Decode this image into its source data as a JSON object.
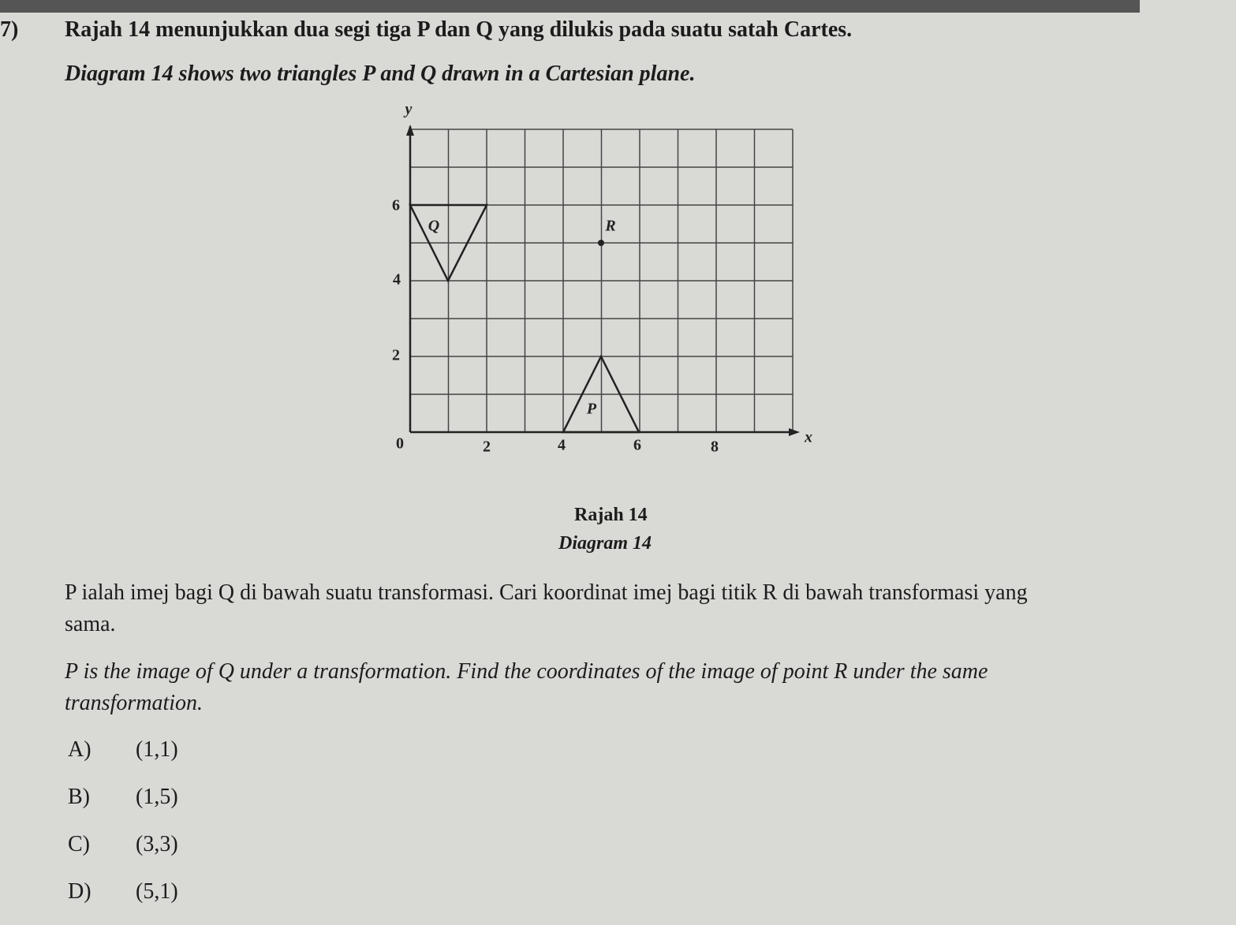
{
  "question": {
    "number": "7)",
    "text_ms": "Rajah 14 menunjukkan dua segi tiga P dan Q yang dilukis pada suatu satah Cartes.",
    "text_en": "Diagram 14 shows two triangles P and Q drawn in a Cartesian plane."
  },
  "diagram": {
    "y_axis_label": "y",
    "x_axis_label": "x",
    "x_tick_labels": [
      "0",
      "2",
      "4",
      "6",
      "8"
    ],
    "y_tick_labels": [
      "2",
      "4",
      "6"
    ],
    "label_q": "Q",
    "label_r": "R",
    "label_p": "P",
    "caption_ms": "Rajah 14",
    "caption_en": "Diagram 14"
  },
  "prompt": {
    "text_ms": "P ialah imej bagi Q di bawah suatu transformasi. Cari koordinat imej bagi titik R di bawah transformasi yang sama.",
    "text_en": "P is the image of Q under a transformation. Find the coordinates of the image of point R under the same transformation."
  },
  "options": [
    {
      "letter": "A)",
      "text": "(1,1)"
    },
    {
      "letter": "B)",
      "text": "(1,5)"
    },
    {
      "letter": "C)",
      "text": "(3,3)"
    },
    {
      "letter": "D)",
      "text": "(5,1)"
    }
  ]
}
